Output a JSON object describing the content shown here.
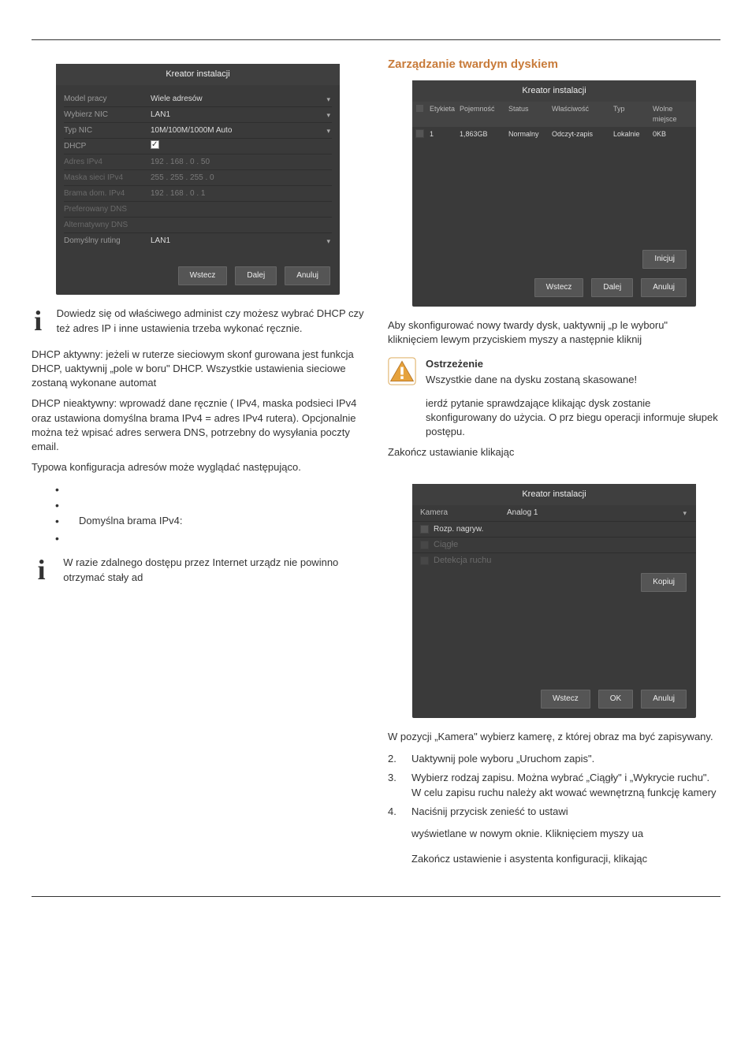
{
  "hr": {},
  "left": {
    "screenshot1": {
      "title": "Kreator instalacji",
      "rows": [
        {
          "label": "Model pracy",
          "value": "Wiele adresów",
          "caret": true
        },
        {
          "label": "Wybierz NIC",
          "value": "LAN1",
          "caret": true
        },
        {
          "label": "Typ NIC",
          "value": "10M/100M/1000M Auto",
          "caret": true
        },
        {
          "label": "DHCP",
          "value": "__check_on__"
        },
        {
          "label": "Adres IPv4",
          "value": "192 . 168 . 0    . 50",
          "dim": true
        },
        {
          "label": "Maska sieci IPv4",
          "value": "255 . 255 . 255 . 0",
          "dim": true
        },
        {
          "label": "Brama dom. IPv4",
          "value": "192 . 168 . 0    . 1",
          "dim": true
        },
        {
          "label": "Preferowany DNS",
          "value": "",
          "dim": true
        },
        {
          "label": "Alternatywny DNS",
          "value": "",
          "dim": true
        },
        {
          "label": "Domyślny ruting",
          "value": "LAN1",
          "caret": true
        }
      ],
      "actions": [
        "Wstecz",
        "Dalej",
        "Anuluj"
      ]
    },
    "note1": "Dowiedz się od właściwego administ czy możesz wybrać DHCP czy też adres IP i inne ustawienia trzeba wykonać ręcznie.",
    "p_dhcp_on": "DHCP aktywny: jeżeli w ruterze sieciowym skonf gurowana jest funkcja DHCP, uaktywnij „pole w boru\" DHCP. Wszystkie ustawienia sieciowe zostaną wykonane automat",
    "p_dhcp_off": "DHCP nieaktywny: wprowadź dane ręcznie ( IPv4, maska podsieci IPv4 oraz ustawiona domyślna brama IPv4 = adres IPv4 rutera). Opcjonalnie można też wpisać adres serwera DNS, potrzebny do wysyłania poczty email.",
    "p_typical": "Typowa konfiguracja adresów może wyglądać następująco.",
    "bullets": [
      "",
      "",
      "Domyślna brama IPv4:",
      ""
    ],
    "note2": "W razie zdalnego dostępu przez Internet urządz nie powinno otrzymać stały ad"
  },
  "right": {
    "heading": "Zarządzanie twardym dyskiem",
    "screenshot2": {
      "title": "Kreator instalacji",
      "headers": {
        "chk": "",
        "lab": "Etykieta",
        "cap": "Pojemność",
        "stat": "Status",
        "prop": "Właściwość",
        "type": "Typ",
        "free": "Wolne miejsce"
      },
      "row": {
        "lab": "1",
        "cap": "1,863GB",
        "stat": "Normalny",
        "prop": "Odczyt-zapis",
        "type": "Lokalnie",
        "free": "0KB"
      },
      "init": "Inicjuj",
      "actions": [
        "Wstecz",
        "Dalej",
        "Anuluj"
      ]
    },
    "p_config": "Aby skonfigurować nowy twardy dysk, uaktywnij „p le wyboru\" kliknięciem lewym przyciskiem myszy a następnie kliknij",
    "warn_title": "Ostrzeżenie",
    "warn_body": "Wszystkie dane na dysku zostaną skasowane!",
    "p_after": "ierdź pytanie sprawdzające klikając dysk zostanie skonfigurowany do użycia. O prz biegu operacji informuje słupek postępu.",
    "p_finish": "Zakończ ustawianie klikając",
    "screenshot3": {
      "title": "Kreator instalacji",
      "camera_label": "Kamera",
      "camera_value": "Analog 1",
      "rec_label": "Rozp. nagryw.",
      "sub1": "Ciągłe",
      "sub2": "Detekcja ruchu",
      "copy": "Kopiuj",
      "actions": [
        "Wstecz",
        "OK",
        "Anuluj"
      ]
    },
    "p_cam": "W pozycji „Kamera\" wybierz kamerę, z której obraz ma być zapisywany.",
    "steps": [
      {
        "n": "2.",
        "t": "Uaktywnij pole wyboru „Uruchom zapis\"."
      },
      {
        "n": "3.",
        "t": "Wybierz rodzaj zapisu. Można wybrać „Ciągły\" i „Wykrycie ruchu\". W celu zapisu ruchu należy akt wować wewnętrzną funkcję kamery"
      },
      {
        "n": "4.",
        "t": "Naciśnij przycisk                              zenieść to ustawi"
      }
    ],
    "p_window": "wyświetlane w nowym oknie. Kliknięciem myszy ua",
    "p_end": "Zakończ ustawienie i asystenta konfiguracji, klikając"
  }
}
